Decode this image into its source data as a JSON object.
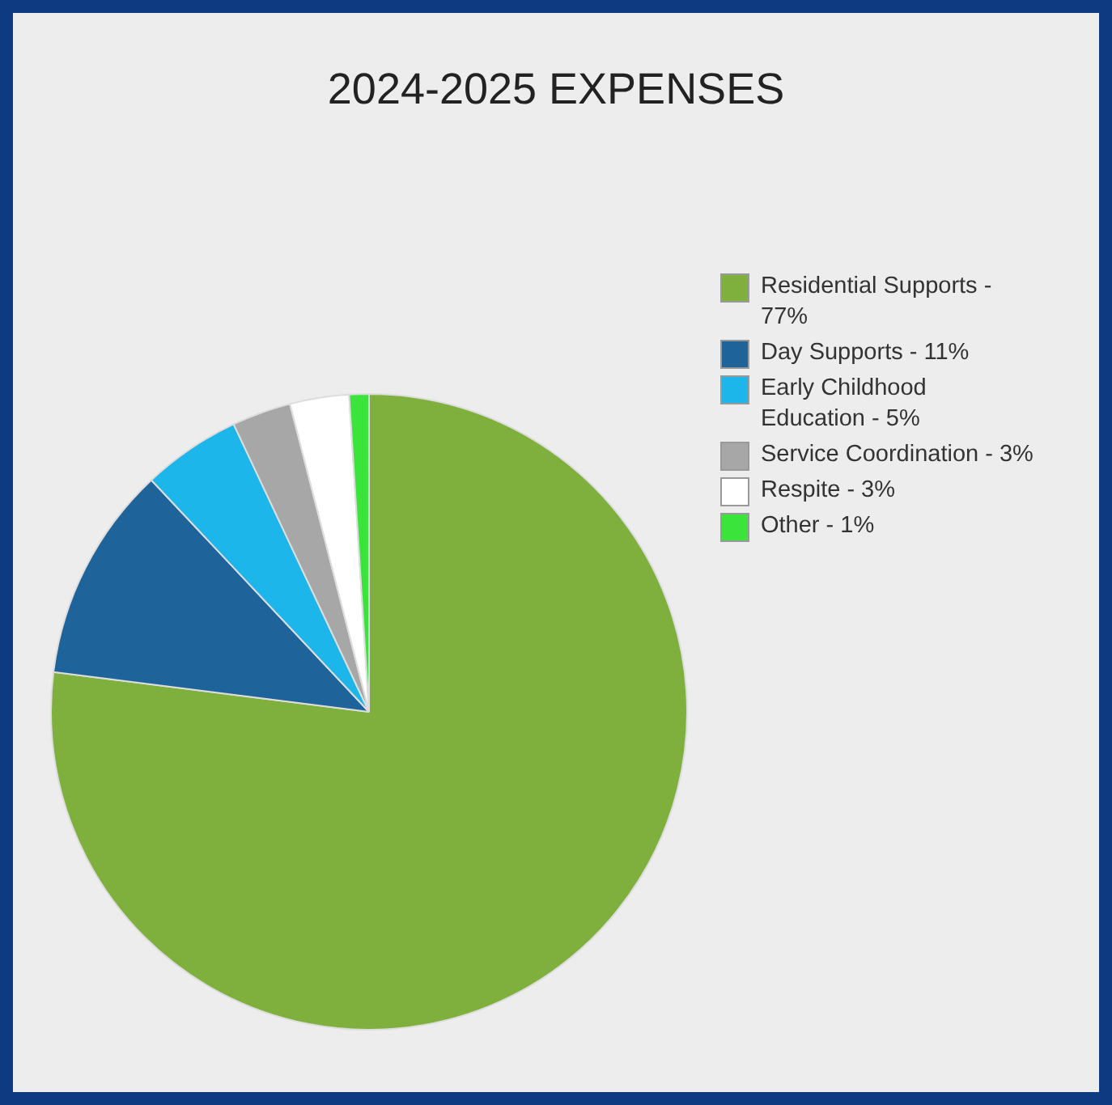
{
  "chart_data": {
    "type": "pie",
    "title": "2024-2025 EXPENSES",
    "categories": [
      "Residential Supports - 77%",
      "Day Supports - 11%",
      "Early Childhood Education - 5%",
      "Service Coordination - 3%",
      "Respite - 3%",
      "Other - 1%"
    ],
    "values": [
      77,
      11,
      5,
      3,
      3,
      1
    ],
    "colors": [
      "#7fb03d",
      "#1e6399",
      "#1cb6ea",
      "#a7a7a7",
      "#ffffff",
      "#3be43a"
    ],
    "legend": "right"
  }
}
